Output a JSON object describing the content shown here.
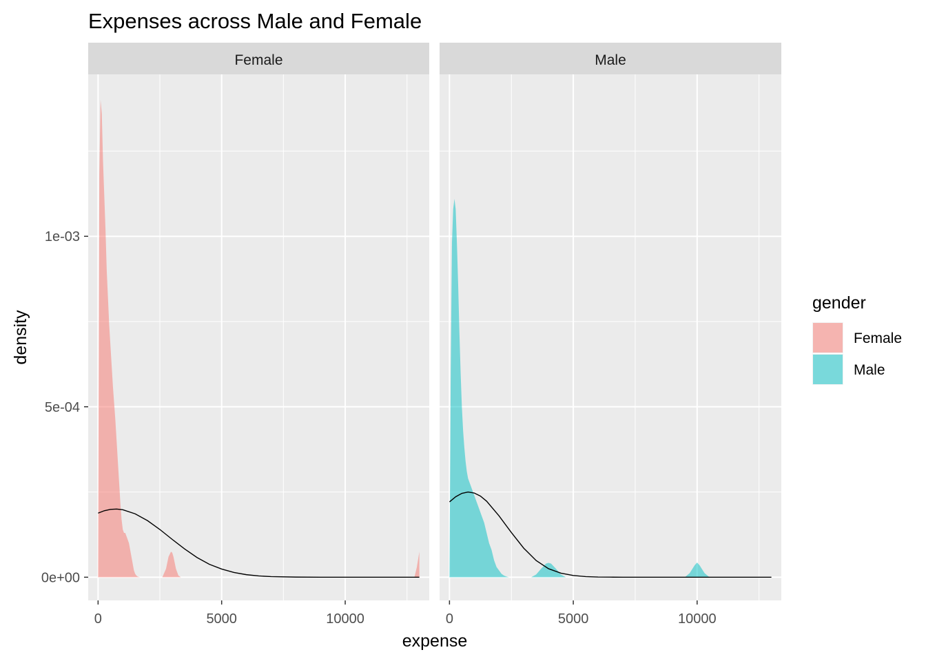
{
  "chart_data": {
    "type": "area",
    "title": "Expenses across Male and Female",
    "xlabel": "expense",
    "ylabel": "density",
    "xlim": [
      -400,
      13400
    ],
    "ylim": [
      -6.8e-05,
      0.001475
    ],
    "x_ticks": [
      0,
      5000,
      10000
    ],
    "x_tick_labels": [
      "0",
      "5000",
      "10000"
    ],
    "y_ticks": [
      0,
      0.0005,
      0.001
    ],
    "y_tick_labels": [
      "0e+00",
      "5e-04",
      "1e-03"
    ],
    "grid": true,
    "facet_variable": "gender",
    "legend": {
      "title": "gender",
      "position": "right",
      "entries": [
        {
          "label": "Female",
          "color": "#F8766D"
        },
        {
          "label": "Male",
          "color": "#00BFC4"
        }
      ]
    },
    "panels": [
      {
        "strip_label": "Female",
        "fill_color": "#F8766D",
        "density": {
          "x": [
            0,
            50,
            100,
            150,
            200,
            250,
            300,
            350,
            400,
            450,
            500,
            550,
            600,
            650,
            700,
            750,
            800,
            850,
            900,
            950,
            1000,
            1050,
            1100,
            1150,
            1200,
            1250,
            1300,
            1350,
            1400,
            1450,
            1500,
            1550,
            1600,
            1650,
            1700,
            2600,
            2750,
            2850,
            2950,
            3000,
            3050,
            3150,
            3250,
            3350,
            12800,
            12900,
            13000
          ],
          "y": [
            0,
            0.00118,
            0.0014,
            0.00136,
            0.00122,
            0.00112,
            0.00102,
            0.0009,
            0.00082,
            0.00074,
            0.00068,
            0.00062,
            0.00056,
            0.00051,
            0.00046,
            0.0004,
            0.00034,
            0.00028,
            0.00022,
            0.00017,
            0.00014,
            0.00013,
            0.00013,
            0.00012,
            0.00011,
            0.0001,
            8e-05,
            6e-05,
            4e-05,
            2e-05,
            1e-05,
            5e-06,
            2e-06,
            1e-06,
            0,
            0,
            2.5e-05,
            6e-05,
            7.5e-05,
            7.2e-05,
            6e-05,
            2.5e-05,
            5e-06,
            0,
            0,
            3e-05,
            7.5e-05
          ]
        },
        "normal_curve": {
          "x": [
            0,
            250,
            500,
            750,
            1000,
            1500,
            2000,
            2500,
            3000,
            3500,
            4000,
            4500,
            5000,
            5500,
            6000,
            6500,
            7000,
            8000,
            9000,
            10000,
            11000,
            12000,
            13000
          ],
          "y": [
            0.000188,
            0.000195,
            0.000199,
            0.0002,
            0.000198,
            0.000186,
            0.000166,
            0.00014,
            0.000111,
            8.3e-05,
            5.8e-05,
            3.8e-05,
            2.4e-05,
            1.4e-05,
            7.5e-06,
            3.8e-06,
            1.8e-06,
            4e-07,
            6e-08,
            0,
            0,
            0,
            0
          ]
        }
      },
      {
        "strip_label": "Male",
        "fill_color": "#00BFC4",
        "density": {
          "x": [
            0,
            50,
            100,
            150,
            200,
            250,
            300,
            350,
            400,
            450,
            500,
            550,
            600,
            650,
            700,
            750,
            800,
            850,
            900,
            950,
            1000,
            1100,
            1200,
            1300,
            1400,
            1500,
            1600,
            1700,
            1800,
            1900,
            2000,
            2100,
            2200,
            2300,
            2400,
            3300,
            3500,
            3700,
            3900,
            4000,
            4100,
            4300,
            4500,
            4700,
            9500,
            9700,
            9900,
            10000,
            10100,
            10300,
            10500
          ],
          "y": [
            0,
            0.0006,
            0.00098,
            0.00108,
            0.00111,
            0.00108,
            0.00098,
            0.00086,
            0.00072,
            0.0006,
            0.0005,
            0.00043,
            0.00038,
            0.00034,
            0.00031,
            0.00029,
            0.00028,
            0.00027,
            0.00026,
            0.00025,
            0.00024,
            0.00022,
            0.0002,
            0.00018,
            0.00016,
            0.00013,
            0.0001,
            8e-05,
            5e-05,
            3e-05,
            2e-05,
            1e-05,
            5e-06,
            2e-06,
            0,
            0,
            8e-06,
            2.5e-05,
            4e-05,
            4.2e-05,
            4e-05,
            2.5e-05,
            8e-06,
            0,
            0,
            1.2e-05,
            3.5e-05,
            4.3e-05,
            3.5e-05,
            1.2e-05,
            0
          ]
        },
        "normal_curve": {
          "x": [
            0,
            250,
            500,
            750,
            1000,
            1250,
            1500,
            2000,
            2500,
            3000,
            3500,
            4000,
            4500,
            5000,
            5500,
            6000,
            6500,
            7000,
            8000,
            9000,
            10000,
            11000,
            12000,
            13000
          ],
          "y": [
            0.000221,
            0.000236,
            0.000246,
            0.00025,
            0.000247,
            0.000238,
            0.000223,
            0.00018,
            0.000131,
            8.5e-05,
            4.9e-05,
            2.5e-05,
            1.2e-05,
            5e-06,
            1.9e-06,
            6e-07,
            2e-07,
            5e-08,
            0,
            0,
            0,
            0,
            0,
            0
          ]
        }
      }
    ]
  }
}
